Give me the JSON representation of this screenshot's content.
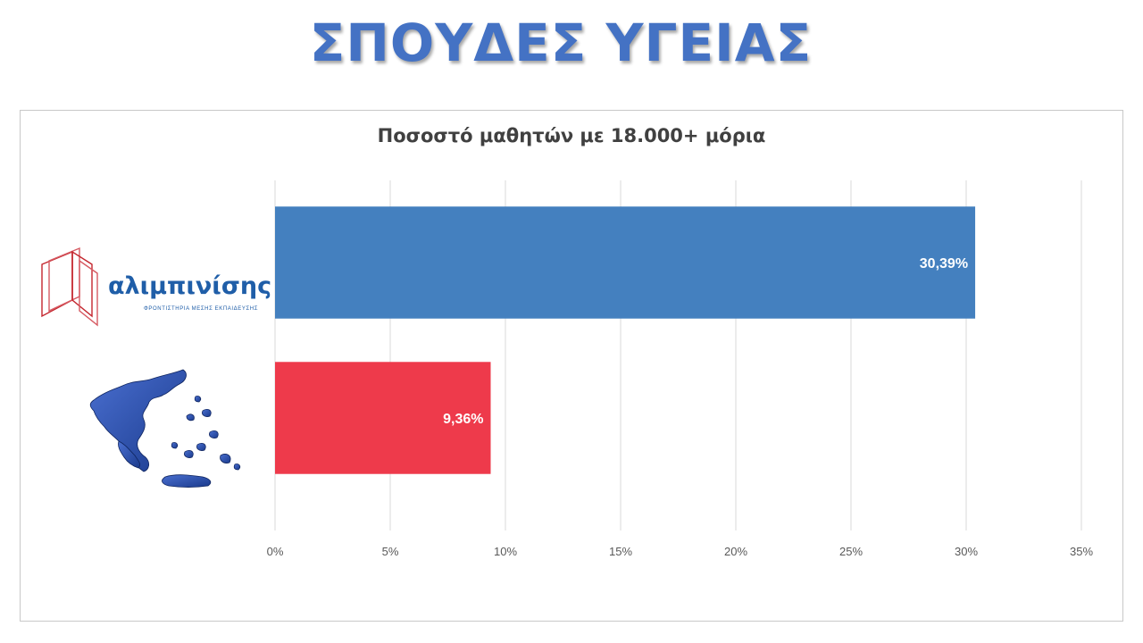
{
  "slide": {
    "title": "ΣΠΟΥΔΕΣ ΥΓΕΙΑΣ"
  },
  "logo": {
    "name": "αλιμπινίσης",
    "tagline": "ΦΡΟΝΤΙΣΤΗΡΙΑ ΜΕΣΗΣ ΕΚΠΑΙΔΕΥΣΗΣ"
  },
  "chart_data": {
    "type": "bar",
    "orientation": "horizontal",
    "title": "Ποσοστό μαθητών με 18.000+ μόρια",
    "categories": [
      "αλιμπινίσης",
      "Ελλάδα"
    ],
    "category_icons": [
      "alimpinisis-logo",
      "greece-map-icon"
    ],
    "values": [
      30.39,
      9.36
    ],
    "data_labels": [
      "30,39%",
      "9,36%"
    ],
    "colors": [
      "#4480bf",
      "#ee3a4b"
    ],
    "xlim": [
      0,
      35
    ],
    "x_ticks": [
      0,
      5,
      10,
      15,
      20,
      25,
      30,
      35
    ],
    "x_tick_labels": [
      "0%",
      "5%",
      "10%",
      "15%",
      "20%",
      "25%",
      "30%",
      "35%"
    ],
    "grid": true,
    "xlabel": "",
    "ylabel": ""
  }
}
